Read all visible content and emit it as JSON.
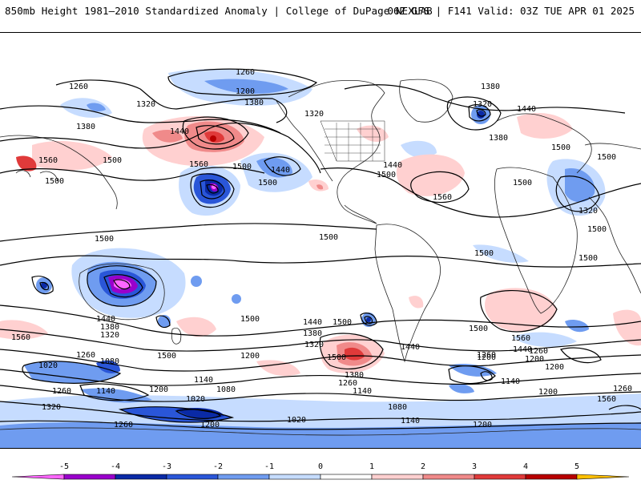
{
  "header": {
    "title": "850mb Height 1981–2010 Standardized Anomaly | College of DuPage NEXLAB",
    "run_info": "06Z GFS | F141 Valid: 03Z TUE APR 01 2025"
  },
  "colorbar": {
    "ticks": [
      "-5",
      "-4",
      "-3",
      "-2",
      "-1",
      "0",
      "1",
      "2",
      "3",
      "4",
      "5"
    ],
    "colors": [
      "#ff66ff",
      "#9a00cc",
      "#0a2aa6",
      "#2a56d8",
      "#6f9cf0",
      "#c6dcff",
      "#ffffff",
      "#ffd0d0",
      "#f08a8a",
      "#e03a3a",
      "#b80000",
      "#ff9a00",
      "#ffc000"
    ]
  },
  "contour_labels": [
    "1260",
    "1200",
    "1380",
    "1320",
    "1260",
    "1320",
    "1380",
    "1440",
    "1500",
    "1560",
    "1500",
    "1500",
    "1440",
    "1500",
    "1560",
    "1500",
    "1440",
    "1380",
    "1320",
    "1380",
    "1500",
    "1560",
    "1500",
    "1440",
    "1500",
    "1500",
    "1500",
    "1440",
    "1380",
    "1320",
    "1500",
    "1560",
    "1440",
    "1380",
    "1320",
    "1260",
    "1200",
    "1140",
    "1080",
    "1020",
    "1200",
    "1500",
    "1440",
    "1380",
    "1260",
    "1200",
    "1140",
    "1080",
    "1020",
    "1260",
    "1200",
    "1140",
    "1080",
    "1020",
    "1260",
    "1320",
    "1260",
    "1200",
    "1140",
    "1200",
    "1260",
    "1500",
    "1500",
    "1500",
    "1500",
    "1560",
    "1560",
    "1440",
    "1200",
    "1140",
    "1200",
    "1260",
    "1320",
    "1500",
    "1500"
  ]
}
